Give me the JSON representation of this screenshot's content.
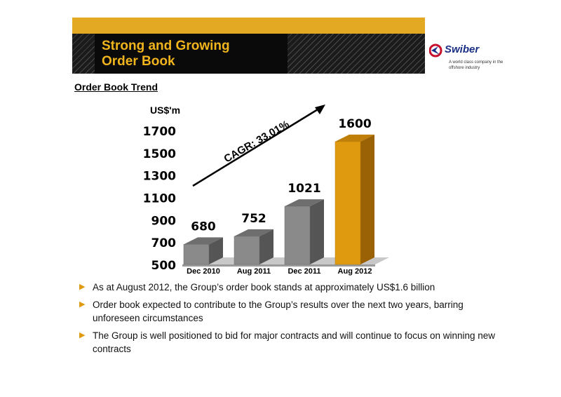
{
  "header": {
    "title_line1": "Strong and Growing",
    "title_line2": "Order Book",
    "brand": "Swiber",
    "tagline": "A world class company in the offshore industry",
    "colors": {
      "gold": "#e3a923",
      "title_text": "#f0b41c",
      "brand_blue": "#1a2f86",
      "brand_red": "#c8102e"
    }
  },
  "subtitle": "Order Book Trend",
  "chart_data": {
    "type": "bar",
    "ylabel": "US$'m",
    "categories": [
      "Dec 2010",
      "Aug 2011",
      "Dec 2011",
      "Aug 2012"
    ],
    "values": [
      680,
      752,
      1021,
      1600
    ],
    "ylim": [
      500,
      1700
    ],
    "yticks": [
      500,
      700,
      900,
      1100,
      1300,
      1500,
      1700
    ],
    "annotation": "CAGR: 33.01%",
    "colors": {
      "normal": "#8a8a8a",
      "highlight": "#e09a10"
    },
    "highlight_index": 3,
    "grid": false
  },
  "bullets": [
    "As at August 2012, the Group’s order book stands at approximately US$1.6 billion",
    "Order book expected to contribute to the Group’s results over the next two years, barring unforeseen circumstances",
    "The Group is well positioned to bid for major contracts and will continue to focus on winning new contracts"
  ]
}
